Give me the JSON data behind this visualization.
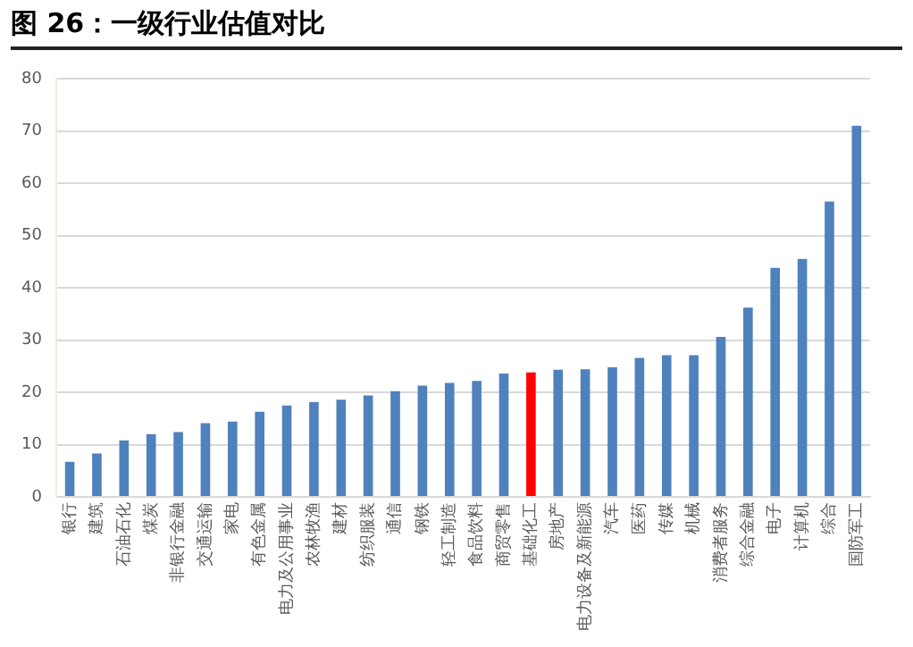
{
  "chart_data": {
    "type": "bar",
    "title": "图 26：一级行业估值对比",
    "categories": [
      "银行",
      "建筑",
      "石油石化",
      "煤炭",
      "非银行金融",
      "交通运输",
      "家电",
      "有色金属",
      "电力及公用事业",
      "农林牧渔",
      "建材",
      "纺织服装",
      "通信",
      "钢铁",
      "轻工制造",
      "食品饮料",
      "商贸零售",
      "基础化工",
      "房地产",
      "电力设备及新能源",
      "汽车",
      "医药",
      "传媒",
      "机械",
      "消费者服务",
      "综合金融",
      "电子",
      "计算机",
      "综合",
      "国防军工"
    ],
    "values": [
      6.7,
      8.3,
      10.8,
      12.0,
      12.4,
      14.1,
      14.4,
      16.3,
      17.5,
      18.1,
      18.6,
      19.4,
      20.2,
      21.3,
      21.8,
      22.2,
      23.6,
      23.8,
      24.3,
      24.4,
      24.8,
      26.6,
      27.1,
      27.1,
      30.6,
      36.2,
      43.8,
      45.5,
      56.5,
      71.0
    ],
    "colors": [
      "#4f81bd",
      "#4f81bd",
      "#4f81bd",
      "#4f81bd",
      "#4f81bd",
      "#4f81bd",
      "#4f81bd",
      "#4f81bd",
      "#4f81bd",
      "#4f81bd",
      "#4f81bd",
      "#4f81bd",
      "#4f81bd",
      "#4f81bd",
      "#4f81bd",
      "#4f81bd",
      "#4f81bd",
      "#ff0000",
      "#4f81bd",
      "#4f81bd",
      "#4f81bd",
      "#4f81bd",
      "#4f81bd",
      "#4f81bd",
      "#4f81bd",
      "#4f81bd",
      "#4f81bd",
      "#4f81bd",
      "#4f81bd",
      "#4f81bd"
    ],
    "ylim": [
      0,
      80
    ],
    "yticks": [
      0,
      10,
      20,
      30,
      40,
      50,
      60,
      70,
      80
    ],
    "grid": "y",
    "legend": false
  }
}
